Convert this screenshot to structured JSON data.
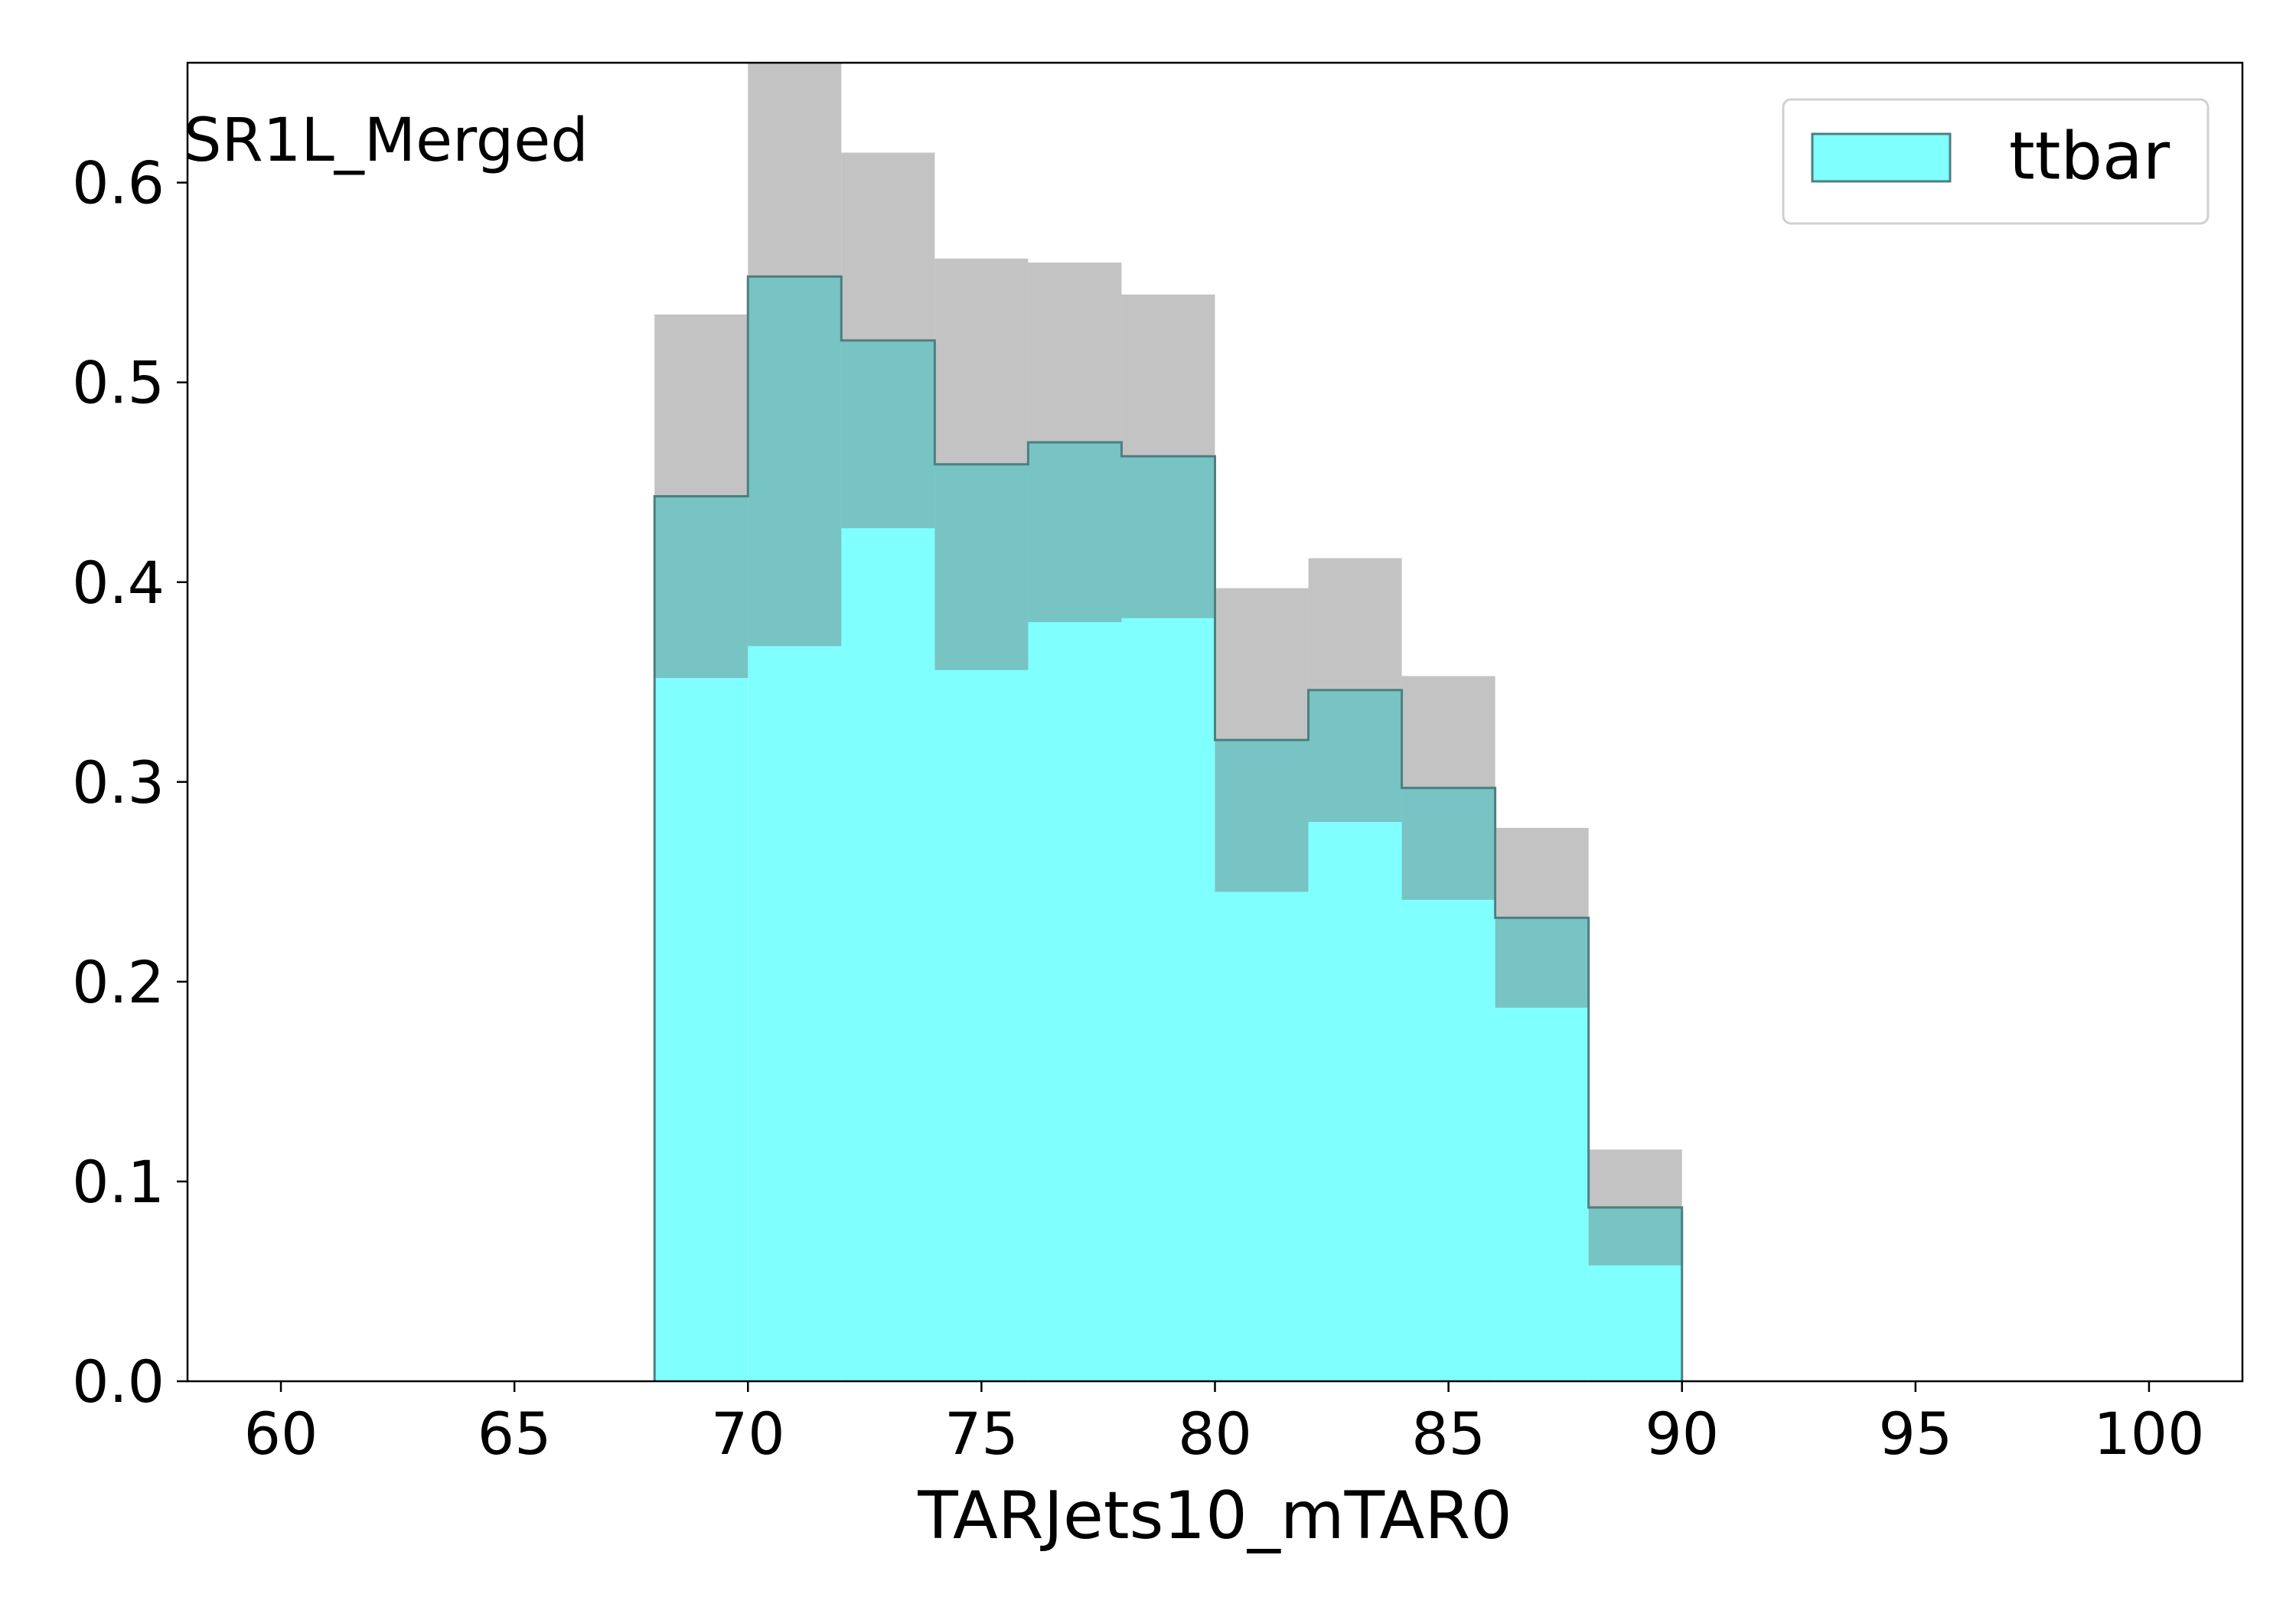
{
  "chart_data": {
    "type": "bar",
    "title": "",
    "region_label": "SR1L_Merged",
    "xlabel": "TARJets10_mTAR0",
    "ylabel": "",
    "xlim": [
      58,
      102
    ],
    "ylim": [
      0,
      0.66
    ],
    "xticks": [
      60,
      65,
      70,
      75,
      80,
      85,
      90,
      95,
      100
    ],
    "xtick_labels": [
      "60",
      "65",
      "70",
      "75",
      "80",
      "85",
      "90",
      "95",
      "100"
    ],
    "yticks": [
      0.0,
      0.1,
      0.2,
      0.3,
      0.4,
      0.5,
      0.6
    ],
    "ytick_labels": [
      "0.0",
      "0.1",
      "0.2",
      "0.3",
      "0.4",
      "0.5",
      "0.6"
    ],
    "bin_edges": [
      68,
      70,
      72,
      74,
      76,
      78,
      80,
      82,
      84,
      86,
      88,
      90
    ],
    "series": [
      {
        "name": "ttbar",
        "color": "#80ffff",
        "edge_color": "#4d7f7f",
        "values": [
          0.443,
          0.553,
          0.521,
          0.459,
          0.47,
          0.463,
          0.321,
          0.346,
          0.297,
          0.232,
          0.087
        ],
        "uncertainty": [
          0.091,
          0.185,
          0.094,
          0.103,
          0.09,
          0.081,
          0.076,
          0.066,
          0.056,
          0.045,
          0.029
        ]
      }
    ],
    "uncertainty_color": "#c3c3c3",
    "overlap_color": "#78c3c3",
    "legend": {
      "position": "top-right",
      "entries": [
        "ttbar"
      ]
    },
    "grid": false
  }
}
